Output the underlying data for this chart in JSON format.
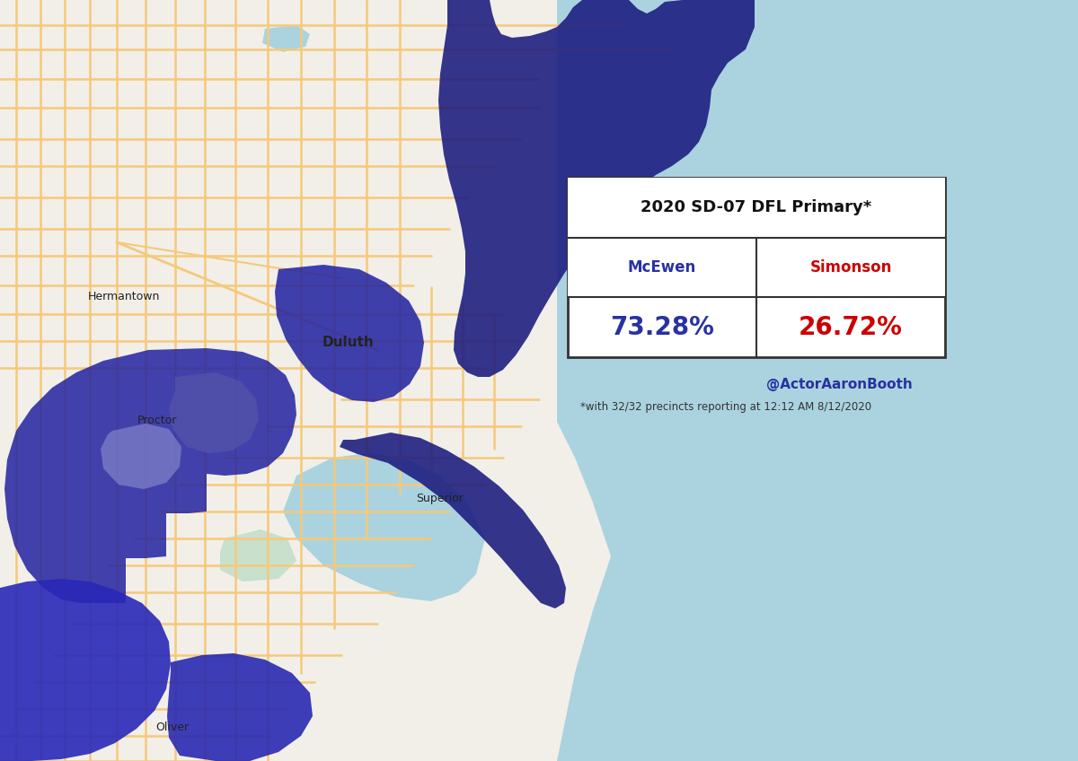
{
  "title": "2020 SD-07 DFL Primary*",
  "candidate1_name": "McEwen",
  "candidate1_pct": "73.28%",
  "candidate1_color": "#2832a0",
  "candidate2_name": "Simonson",
  "candidate2_pct": "26.72%",
  "candidate2_color": "#cc0000",
  "attribution": "@ActorAaronBooth",
  "footnote": "*with 32/32 precincts reporting at 12:12 AM 8/12/2020",
  "attribution_color": "#2832a0",
  "map_land_color": "#f2efe9",
  "map_water_color": "#aad3df",
  "map_road_major": "#f5c97a",
  "map_road_minor": "#ffffff",
  "table_bg": "#ffffff",
  "table_border": "#333333",
  "fig_width": 12.0,
  "fig_height": 8.48,
  "dpi": 100
}
